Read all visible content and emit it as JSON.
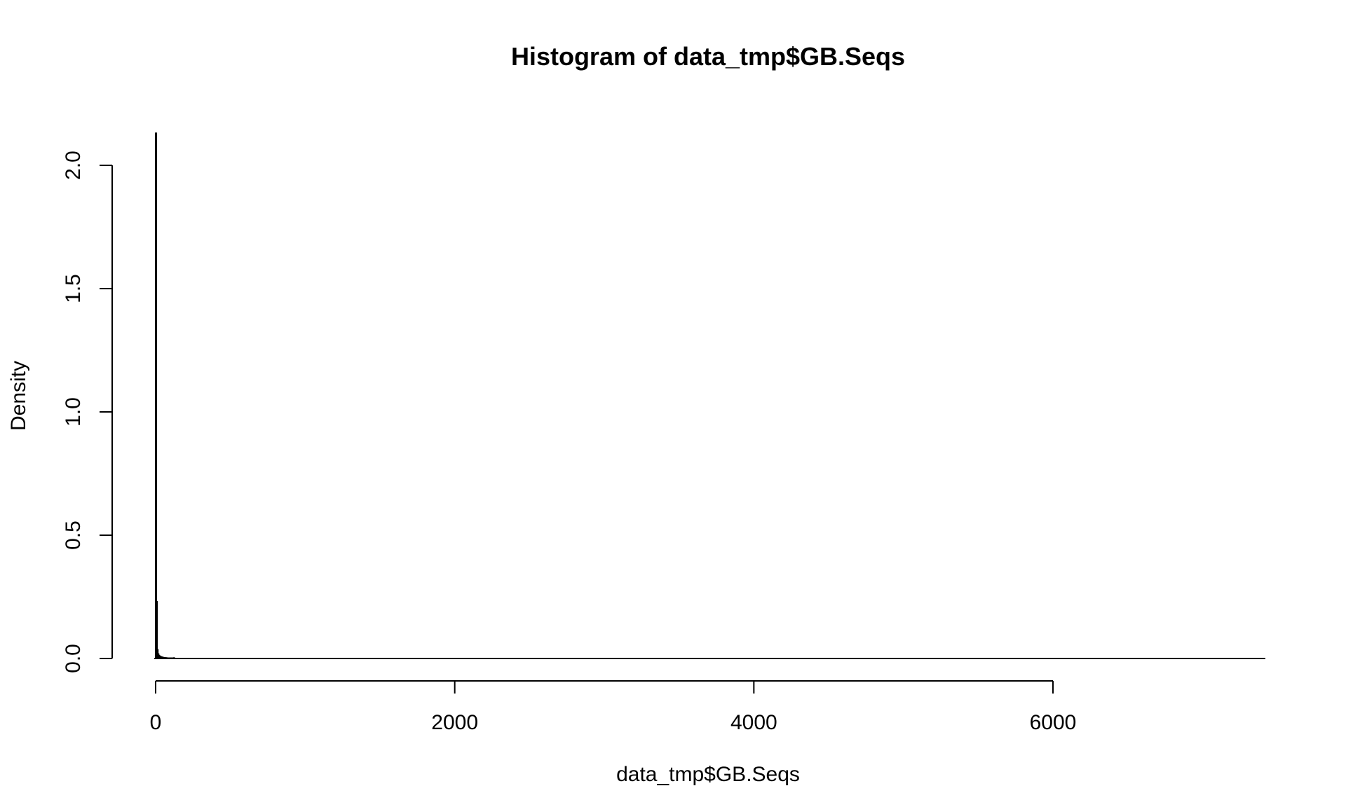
{
  "chart_data": {
    "type": "bar",
    "title": "Histogram of data_tmp$GB.Seqs",
    "xlabel": "data_tmp$GB.Seqs",
    "ylabel": "Density",
    "xlim": [
      0,
      7400
    ],
    "ylim": [
      0,
      2.1
    ],
    "x_ticks": [
      0,
      2000,
      4000,
      6000
    ],
    "x_tick_labels": [
      "0",
      "2000",
      "4000",
      "6000"
    ],
    "y_ticks": [
      0,
      0.5,
      1.0,
      1.5,
      2.0
    ],
    "y_tick_labels": [
      "0.0",
      "0.5",
      "1.0",
      "1.5",
      "2.0"
    ],
    "bin_width": 5,
    "bins": [
      {
        "x0": 0,
        "x1": 5,
        "density": 2.13
      },
      {
        "x0": 5,
        "x1": 10,
        "density": 0.23
      },
      {
        "x0": 10,
        "x1": 15,
        "density": 0.035
      },
      {
        "x0": 15,
        "x1": 20,
        "density": 0.018
      },
      {
        "x0": 20,
        "x1": 25,
        "density": 0.012
      },
      {
        "x0": 25,
        "x1": 30,
        "density": 0.009
      },
      {
        "x0": 30,
        "x1": 35,
        "density": 0.007
      },
      {
        "x0": 35,
        "x1": 40,
        "density": 0.006
      },
      {
        "x0": 40,
        "x1": 45,
        "density": 0.005
      },
      {
        "x0": 45,
        "x1": 50,
        "density": 0.004
      },
      {
        "x0": 50,
        "x1": 55,
        "density": 0.003
      },
      {
        "x0": 55,
        "x1": 60,
        "density": 0.003
      },
      {
        "x0": 60,
        "x1": 65,
        "density": 0.002
      },
      {
        "x0": 65,
        "x1": 70,
        "density": 0.002
      },
      {
        "x0": 70,
        "x1": 75,
        "density": 0.002
      },
      {
        "x0": 75,
        "x1": 80,
        "density": 0.001
      },
      {
        "x0": 80,
        "x1": 85,
        "density": 0.001
      },
      {
        "x0": 85,
        "x1": 90,
        "density": 0.001
      },
      {
        "x0": 95,
        "x1": 100,
        "density": 0.001
      },
      {
        "x0": 105,
        "x1": 110,
        "density": 0.001
      },
      {
        "x0": 120,
        "x1": 125,
        "density": 0.002
      }
    ]
  }
}
